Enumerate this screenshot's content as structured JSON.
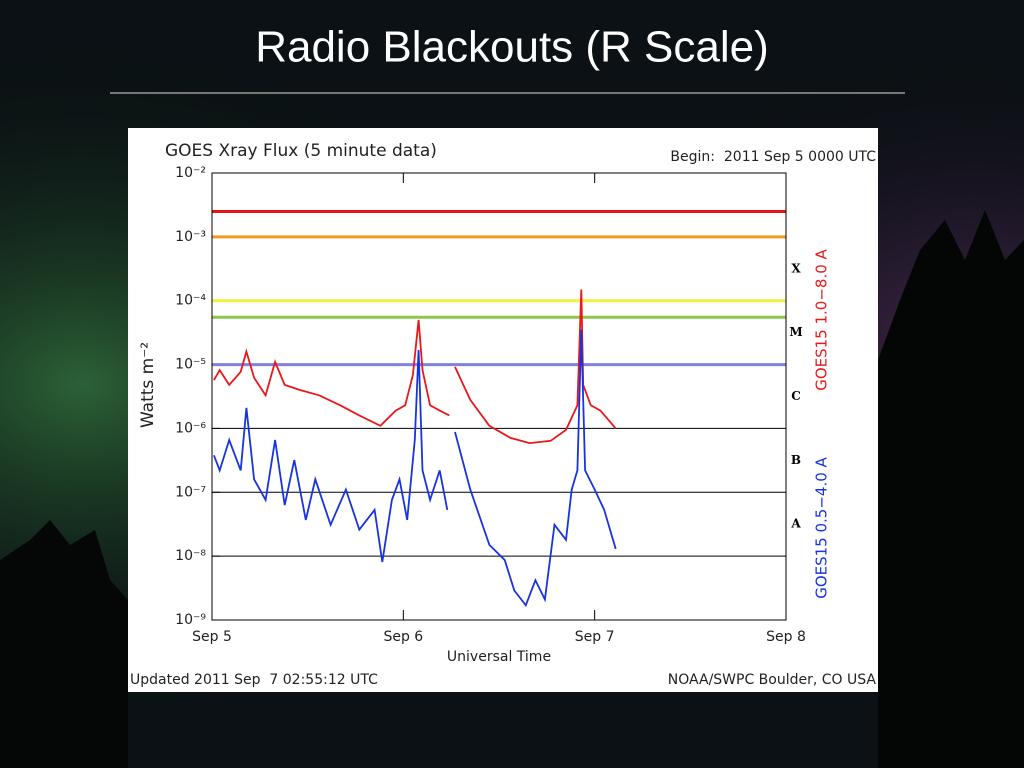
{
  "title": "Radio Blackouts (R Scale)",
  "chart_data": {
    "type": "line",
    "title": "GOES Xray Flux (5 minute data)",
    "subtitle": "Begin:  2011 Sep 5 0000 UTC",
    "x_label": "Universal Time",
    "y_label": "Watts m⁻²",
    "log_scale": true,
    "grid": true,
    "xlim": [
      0,
      3
    ],
    "xticks": [
      {
        "value": 0,
        "label": "Sep 5"
      },
      {
        "value": 1,
        "label": "Sep 6"
      },
      {
        "value": 2,
        "label": "Sep 7"
      },
      {
        "value": 3,
        "label": "Sep 8"
      }
    ],
    "ylim": [
      1e-09,
      0.01
    ],
    "yticks": [
      {
        "value": 1e-09,
        "label": "10⁻⁹"
      },
      {
        "value": 1e-08,
        "label": "10⁻⁸"
      },
      {
        "value": 1e-07,
        "label": "10⁻⁷"
      },
      {
        "value": 1e-06,
        "label": "10⁻⁶"
      },
      {
        "value": 1e-05,
        "label": "10⁻⁵"
      },
      {
        "value": 0.0001,
        "label": "10⁻⁴"
      },
      {
        "value": 0.001,
        "label": "10⁻³"
      },
      {
        "value": 0.01,
        "label": "10⁻²"
      }
    ],
    "reference_lines": [
      {
        "value": 0.0025,
        "color": "#ee1111"
      },
      {
        "value": 0.001,
        "color": "#f39a1e"
      },
      {
        "value": 0.0001,
        "color": "#f5f03a"
      },
      {
        "value": 5.5e-05,
        "color": "#8cc84b"
      },
      {
        "value": 1e-05,
        "color": "#7f80e8"
      }
    ],
    "flare_classes": [
      "X",
      "M",
      "C",
      "B",
      "A"
    ],
    "series": [
      {
        "name": "GOES15 1.0−8.0 A",
        "color": "#e8191b",
        "x": [
          0.01,
          0.04,
          0.09,
          0.15,
          0.18,
          0.22,
          0.28,
          0.33,
          0.38,
          0.46,
          0.56,
          0.67,
          0.77,
          0.88,
          0.96,
          1.01,
          1.05,
          1.08,
          1.1,
          1.14,
          1.19,
          1.24,
          1.25,
          1.27,
          1.35,
          1.45,
          1.56,
          1.66,
          1.77,
          1.85,
          1.91,
          1.93,
          1.94,
          1.98,
          2.03,
          2.11
        ],
        "values": [
          5.7e-06,
          8.2e-06,
          4.8e-06,
          7.7e-06,
          1.6e-05,
          6.2e-06,
          3.3e-06,
          1.1e-05,
          4.8e-06,
          4e-06,
          3.3e-06,
          2.3e-06,
          1.6e-06,
          1.1e-06,
          1.9e-06,
          2.3e-06,
          6.9e-06,
          5e-05,
          8.2e-06,
          2.3e-06,
          1.9e-06,
          1.6e-06,
          null,
          9.2e-06,
          2.8e-06,
          1.1e-06,
          7.1e-07,
          5.9e-07,
          6.4e-07,
          9.5e-07,
          2.3e-06,
          0.00015,
          4.8e-06,
          2.3e-06,
          1.9e-06,
          1e-06
        ]
      },
      {
        "name": "GOES15 0.5−4.0 A",
        "color": "#1833e0",
        "x": [
          0.01,
          0.04,
          0.09,
          0.15,
          0.18,
          0.22,
          0.28,
          0.33,
          0.38,
          0.43,
          0.49,
          0.54,
          0.62,
          0.7,
          0.77,
          0.85,
          0.89,
          0.94,
          0.98,
          1.02,
          1.06,
          1.08,
          1.1,
          1.14,
          1.19,
          1.23,
          1.25,
          1.27,
          1.35,
          1.45,
          1.53,
          1.58,
          1.64,
          1.69,
          1.74,
          1.79,
          1.85,
          1.88,
          1.91,
          1.93,
          1.95,
          2.0,
          2.05,
          2.11
        ],
        "values": [
          3.8e-07,
          2.2e-07,
          6.6e-07,
          2.2e-07,
          2.1e-06,
          1.6e-07,
          7.6e-08,
          6.6e-07,
          6.3e-08,
          3.2e-07,
          3.7e-08,
          1.6e-07,
          3.1e-08,
          1.1e-07,
          2.6e-08,
          5.3e-08,
          8.1e-09,
          7.6e-08,
          1.6e-07,
          3.7e-08,
          6.6e-07,
          1.7e-05,
          2.2e-07,
          7.6e-08,
          2.2e-07,
          5.3e-08,
          null,
          8.8e-07,
          1.1e-07,
          1.5e-08,
          8.7e-09,
          2.9e-09,
          1.7e-09,
          4.2e-09,
          2.1e-09,
          3.1e-08,
          1.8e-08,
          1.1e-07,
          2.2e-07,
          3.5e-05,
          2.2e-07,
          1.1e-07,
          5.3e-08,
          1.3e-08
        ]
      }
    ],
    "footer_left": "Updated 2011 Sep  7 02:55:12 UTC",
    "footer_right": "NOAA/SWPC Boulder, CO USA"
  }
}
